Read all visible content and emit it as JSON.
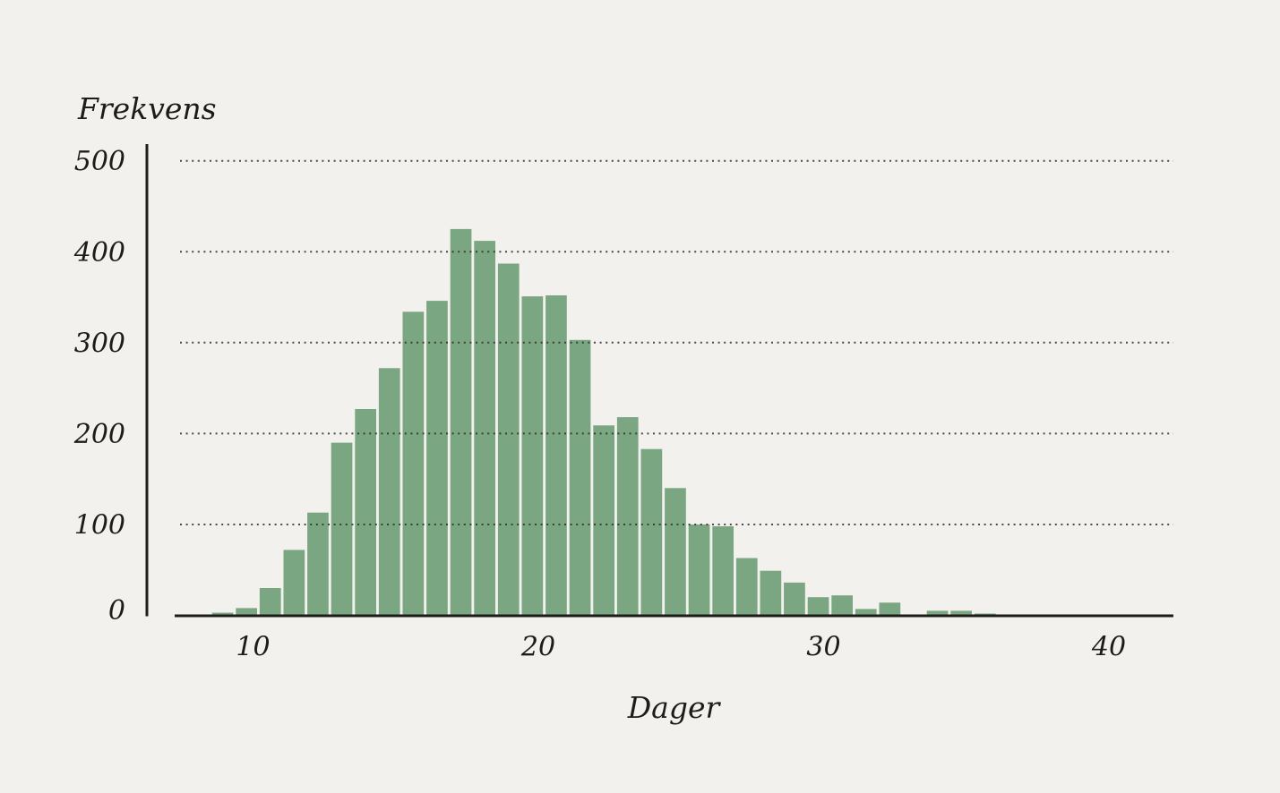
{
  "chart_data": {
    "type": "bar",
    "subtype": "histogram",
    "title": "",
    "ylabel": "Frekvens",
    "xlabel": "Dager",
    "x_ticks": [
      10,
      20,
      30,
      40
    ],
    "y_ticks": [
      0,
      100,
      200,
      300,
      400,
      500
    ],
    "ylim": [
      0,
      500
    ],
    "xlim_days": [
      7.3,
      42.3
    ],
    "grid": "horizontal dotted lines at 100..500, drawn on top of bars",
    "legend": "none",
    "bin_start_days": 8.6,
    "bin_width_days": 0.83,
    "frequencies": [
      3,
      8,
      30,
      72,
      113,
      190,
      227,
      272,
      334,
      346,
      425,
      412,
      387,
      351,
      352,
      303,
      209,
      218,
      183,
      140,
      100,
      98,
      63,
      49,
      36,
      20,
      22,
      7,
      14,
      0,
      5,
      5,
      2,
      1
    ],
    "colors": {
      "bar": "#7aa781",
      "background": "#f2f1ee",
      "ink": "#1d1c1a",
      "grid_dot": "#2e2c29"
    }
  }
}
